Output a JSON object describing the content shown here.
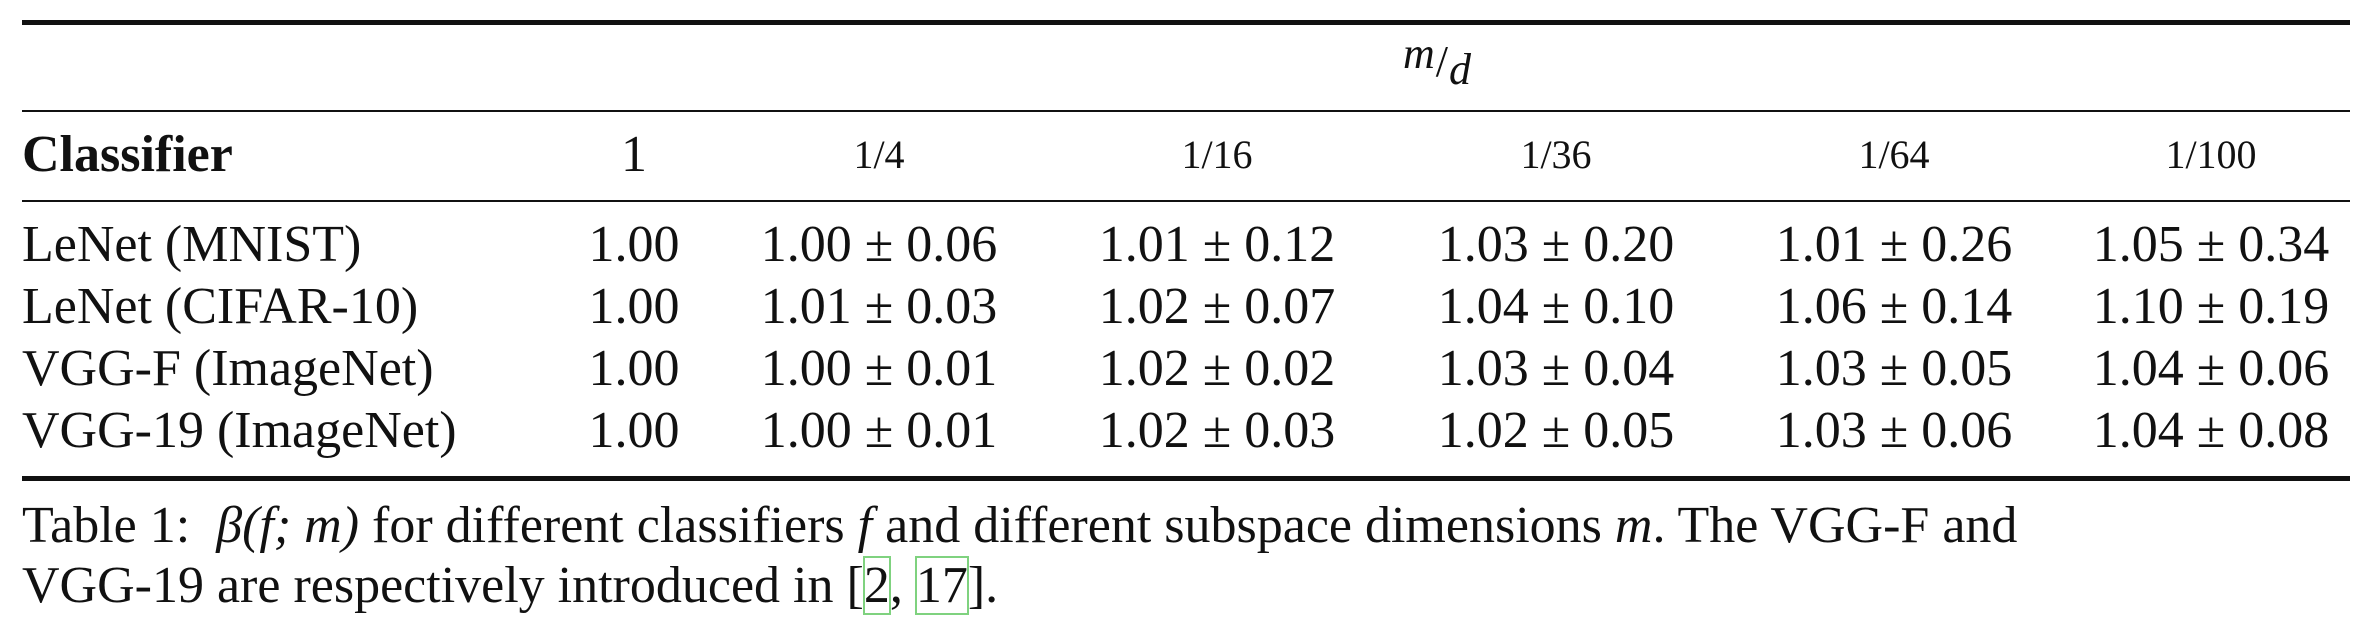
{
  "table": {
    "group_header": {
      "numerator": "m",
      "slash": "/",
      "denominator": "d"
    },
    "columns": [
      "Classifier",
      "1",
      "1/4",
      "1/16",
      "1/36",
      "1/64",
      "1/100"
    ],
    "rows": [
      {
        "name": "LeNet (MNIST)",
        "values": [
          "1.00",
          "1.00 ± 0.06",
          "1.01 ± 0.12",
          "1.03 ± 0.20",
          "1.01 ± 0.26",
          "1.05 ± 0.34"
        ]
      },
      {
        "name": "LeNet (CIFAR-10)",
        "values": [
          "1.00",
          "1.01 ± 0.03",
          "1.02 ± 0.07",
          "1.04 ± 0.10",
          "1.06 ± 0.14",
          "1.10 ± 0.19"
        ]
      },
      {
        "name": "VGG-F (ImageNet)",
        "values": [
          "1.00",
          "1.00 ± 0.01",
          "1.02 ± 0.02",
          "1.03 ± 0.04",
          "1.03 ± 0.05",
          "1.04 ± 0.06"
        ]
      },
      {
        "name": "VGG-19 (ImageNet)",
        "values": [
          "1.00",
          "1.00 ± 0.01",
          "1.02 ± 0.03",
          "1.02 ± 0.05",
          "1.03 ± 0.06",
          "1.04 ± 0.08"
        ]
      }
    ]
  },
  "caption": {
    "label": "Table 1:",
    "math": "β(f; m)",
    "text_a": " for different classifiers ",
    "f": "f",
    "text_b": " and different subspace dimensions ",
    "m": "m",
    "text_c": ". The VGG-F and",
    "line2_a": "VGG-19 are respectively introduced in [",
    "ref1": "2",
    "sep": ", ",
    "ref2": "17",
    "line2_b": "]."
  }
}
